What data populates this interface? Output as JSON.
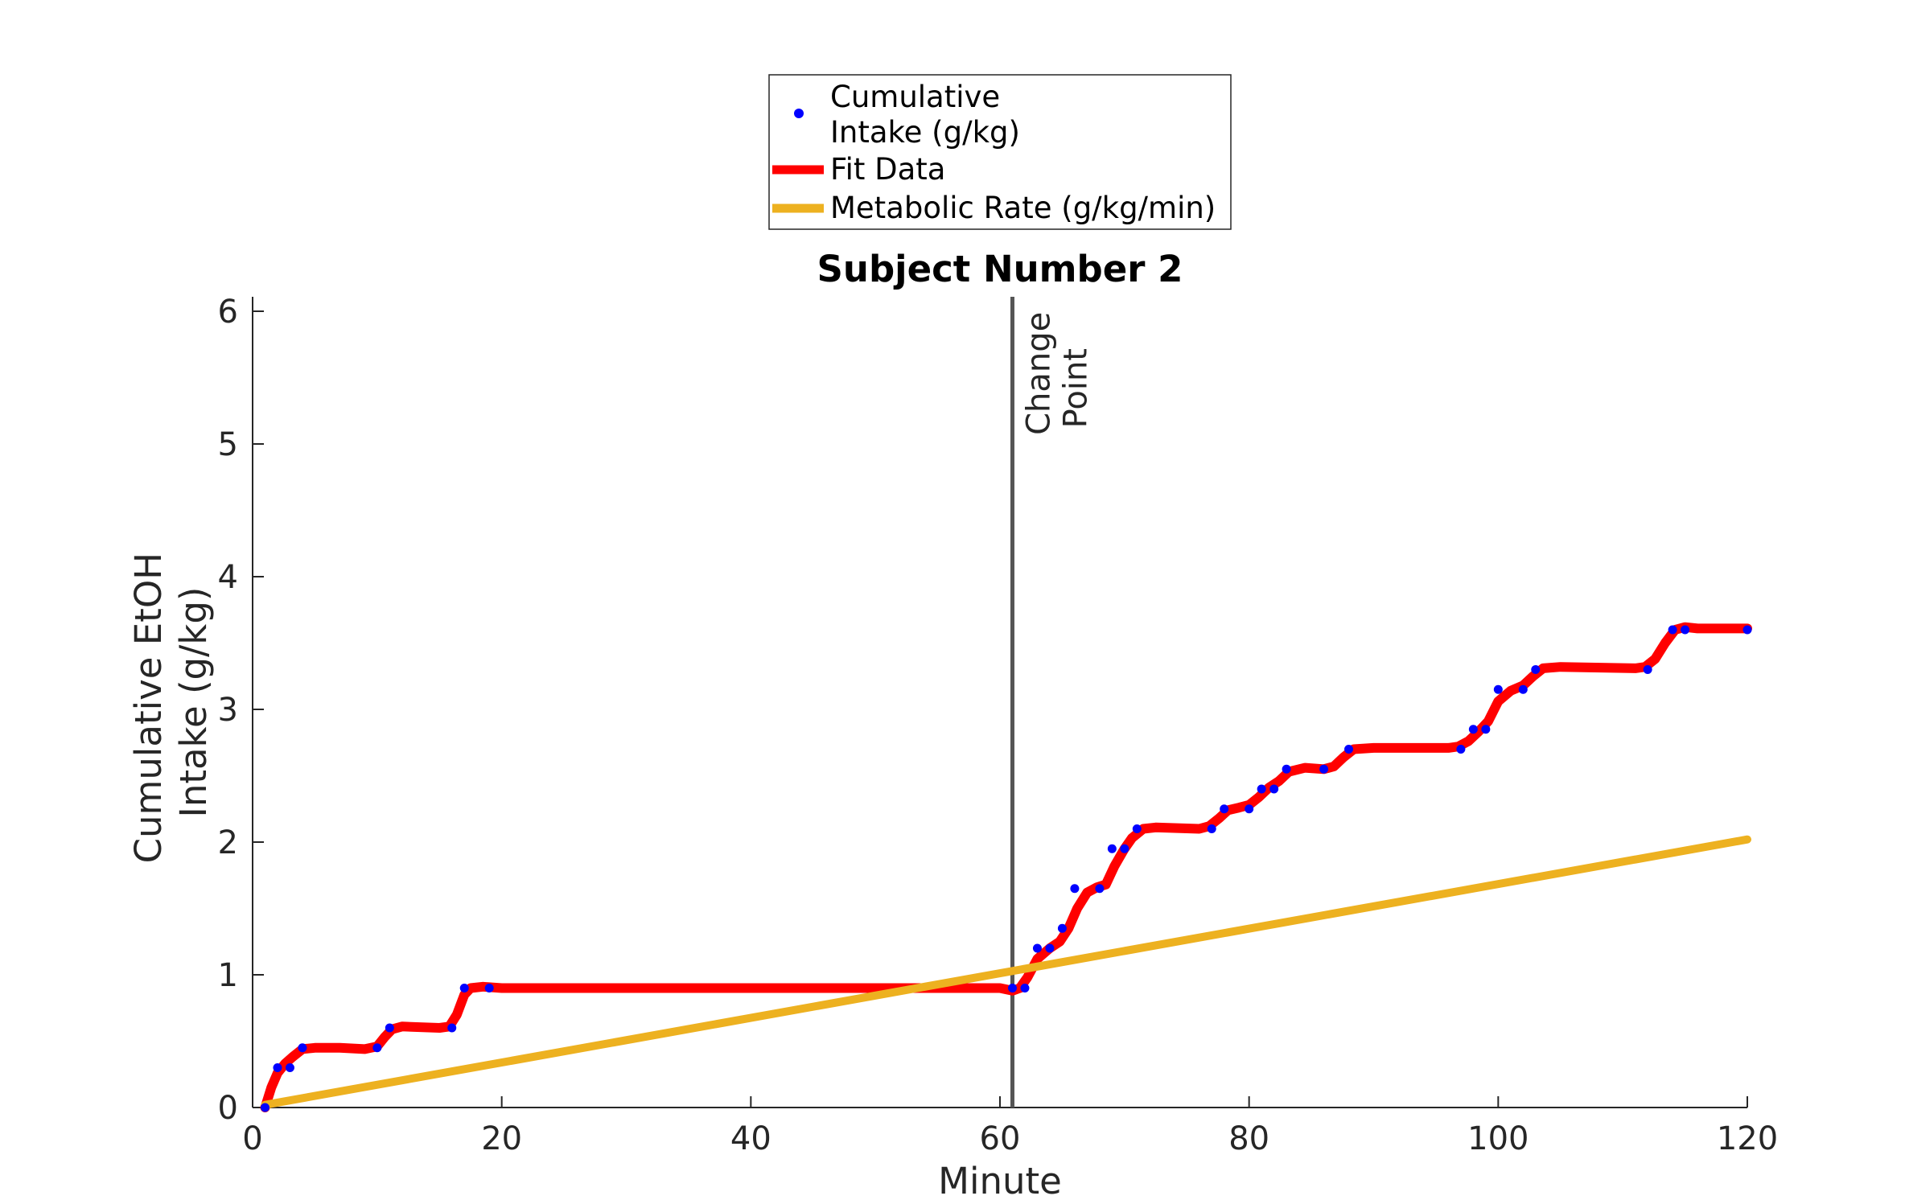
{
  "chart_data": {
    "type": "line",
    "title": "Subject Number 2",
    "xlabel": "Minute",
    "ylabel_lines": [
      "Cumulative EtOH",
      "Intake (g/kg)"
    ],
    "xlim": [
      0,
      120
    ],
    "ylim": [
      0,
      6.1
    ],
    "xticks": [
      0,
      20,
      40,
      60,
      80,
      100,
      120
    ],
    "yticks": [
      0,
      1,
      2,
      3,
      4,
      5,
      6
    ],
    "grid": false,
    "legend_position": "top-center (outside)",
    "legend": [
      {
        "lines": [
          "Cumulative",
          "Intake (g/kg)"
        ],
        "marker": "dot",
        "color": "#0000ff"
      },
      {
        "lines": [
          "Fit Data"
        ],
        "marker": "line",
        "color": "#ff0000"
      },
      {
        "lines": [
          "Metabolic Rate (g/kg/min)"
        ],
        "marker": "line",
        "color": "#edb120"
      }
    ],
    "annotation": {
      "lines": [
        "Change",
        "Point"
      ],
      "x": 61,
      "color": "#555555"
    },
    "series": [
      {
        "name": "Cumulative Intake (g/kg)",
        "style": "points",
        "color": "#0000ff",
        "x": [
          1,
          2,
          3,
          4,
          10,
          11,
          16,
          17,
          19,
          61,
          62,
          63,
          64,
          65,
          66,
          68,
          69,
          70,
          71,
          77,
          78,
          80,
          81,
          82,
          83,
          86,
          88,
          97,
          98,
          99,
          100,
          102,
          103,
          112,
          114,
          115,
          120
        ],
        "y": [
          0.0,
          0.3,
          0.3,
          0.45,
          0.45,
          0.6,
          0.6,
          0.9,
          0.9,
          0.9,
          0.9,
          1.2,
          1.2,
          1.35,
          1.65,
          1.65,
          1.95,
          1.95,
          2.1,
          2.1,
          2.25,
          2.25,
          2.4,
          2.4,
          2.55,
          2.55,
          2.7,
          2.7,
          2.85,
          2.85,
          3.15,
          3.15,
          3.3,
          3.3,
          3.6,
          3.6,
          3.6
        ]
      },
      {
        "name": "Fit Data",
        "style": "line",
        "color": "#ff0000",
        "x": [
          1,
          1.5,
          2,
          2.6,
          3.2,
          4,
          5,
          7,
          9,
          10,
          10.6,
          11.2,
          12,
          15,
          15.8,
          16.4,
          17,
          17.5,
          18.5,
          20,
          40,
          58,
          60,
          61,
          61.6,
          62.2,
          63,
          64,
          64.8,
          65.5,
          66.2,
          67,
          67.8,
          68.5,
          69.2,
          70,
          70.6,
          71.5,
          72.5,
          76,
          76.8,
          77.6,
          78.3,
          79.2,
          80,
          80.8,
          81.6,
          82.4,
          83.2,
          84.5,
          86,
          86.8,
          87.6,
          88.4,
          90,
          96,
          96.8,
          97.6,
          98.4,
          99.2,
          100,
          101,
          102,
          102.8,
          103.6,
          105,
          111,
          111.8,
          112.6,
          113.4,
          114.2,
          115,
          116,
          120
        ],
        "y": [
          0.0,
          0.15,
          0.26,
          0.33,
          0.38,
          0.44,
          0.45,
          0.45,
          0.44,
          0.46,
          0.53,
          0.59,
          0.61,
          0.6,
          0.61,
          0.7,
          0.85,
          0.9,
          0.91,
          0.9,
          0.9,
          0.9,
          0.9,
          0.88,
          0.9,
          0.98,
          1.12,
          1.2,
          1.25,
          1.35,
          1.5,
          1.62,
          1.66,
          1.68,
          1.82,
          1.95,
          2.03,
          2.1,
          2.11,
          2.1,
          2.12,
          2.18,
          2.24,
          2.26,
          2.28,
          2.34,
          2.41,
          2.46,
          2.53,
          2.56,
          2.55,
          2.57,
          2.64,
          2.7,
          2.71,
          2.71,
          2.72,
          2.76,
          2.83,
          2.91,
          3.06,
          3.14,
          3.18,
          3.25,
          3.31,
          3.32,
          3.31,
          3.32,
          3.38,
          3.5,
          3.6,
          3.62,
          3.61,
          3.61
        ]
      },
      {
        "name": "Metabolic Rate (g/kg/min)",
        "style": "line",
        "color": "#edb120",
        "x": [
          1,
          120
        ],
        "y": [
          0.02,
          2.02
        ]
      }
    ]
  }
}
